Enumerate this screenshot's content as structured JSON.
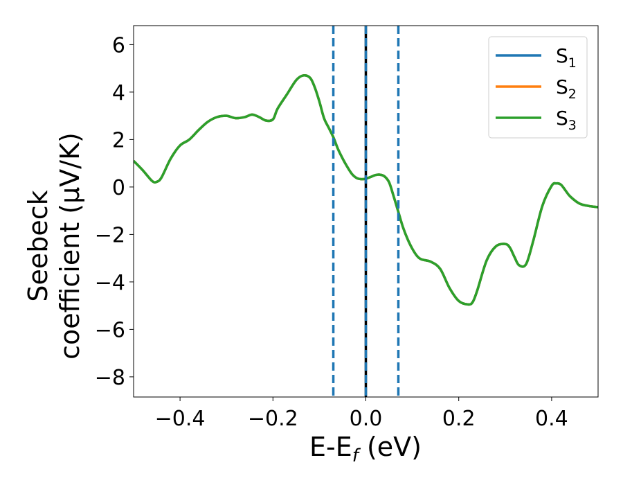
{
  "chart_data": {
    "type": "line",
    "xlabel": "E-E",
    "xlabel_sub": "f",
    "xlabel_unit": " (eV)",
    "ylabel_line1": "Seebeck",
    "ylabel_line2": "coefficient  (μV/K)",
    "xlim": [
      -0.5,
      0.5
    ],
    "ylim": [
      -8.85,
      6.8
    ],
    "xticks": [
      -0.4,
      -0.2,
      0.0,
      0.2,
      0.4
    ],
    "xtick_labels": [
      "−0.4",
      "−0.2",
      "0.0",
      "0.2",
      "0.4"
    ],
    "yticks": [
      -8,
      -6,
      -4,
      -2,
      0,
      2,
      4,
      6
    ],
    "ytick_labels": [
      "−8",
      "−6",
      "−4",
      "−2",
      "0",
      "2",
      "4",
      "6"
    ],
    "grid": false,
    "legend_position": "top-right",
    "x": [
      -0.5,
      -0.48,
      -0.46,
      -0.45,
      -0.44,
      -0.42,
      -0.4,
      -0.38,
      -0.36,
      -0.34,
      -0.32,
      -0.3,
      -0.28,
      -0.26,
      -0.245,
      -0.23,
      -0.215,
      -0.2,
      -0.19,
      -0.17,
      -0.15,
      -0.135,
      -0.12,
      -0.11,
      -0.1,
      -0.09,
      -0.08,
      -0.07,
      -0.06,
      -0.05,
      -0.04,
      -0.03,
      -0.02,
      -0.01,
      0.0,
      0.01,
      0.02,
      0.03,
      0.04,
      0.05,
      0.06,
      0.07,
      0.08,
      0.09,
      0.1,
      0.11,
      0.12,
      0.14,
      0.16,
      0.18,
      0.2,
      0.22,
      0.23,
      0.24,
      0.26,
      0.28,
      0.3,
      0.31,
      0.32,
      0.33,
      0.345,
      0.36,
      0.38,
      0.4,
      0.41,
      0.42,
      0.43,
      0.44,
      0.46,
      0.48,
      0.5
    ],
    "series": [
      {
        "name": "S",
        "sub": "1",
        "color": "#1f77b4",
        "values": [
          1.1,
          0.7,
          0.25,
          0.22,
          0.4,
          1.2,
          1.75,
          2.0,
          2.4,
          2.75,
          2.95,
          3.0,
          2.9,
          2.95,
          3.05,
          2.95,
          2.8,
          2.85,
          3.3,
          3.9,
          4.5,
          4.7,
          4.6,
          4.2,
          3.6,
          2.9,
          2.5,
          2.1,
          1.6,
          1.2,
          0.85,
          0.55,
          0.38,
          0.33,
          0.35,
          0.42,
          0.5,
          0.52,
          0.45,
          0.2,
          -0.4,
          -1.05,
          -1.7,
          -2.2,
          -2.6,
          -2.9,
          -3.05,
          -3.15,
          -3.45,
          -4.25,
          -4.8,
          -4.95,
          -4.85,
          -4.35,
          -3.1,
          -2.5,
          -2.4,
          -2.55,
          -2.95,
          -3.3,
          -3.25,
          -2.3,
          -0.8,
          0.05,
          0.15,
          0.1,
          -0.15,
          -0.4,
          -0.7,
          -0.8,
          -0.85
        ]
      },
      {
        "name": "S",
        "sub": "2",
        "color": "#ff7f0e",
        "values": [
          1.1,
          0.7,
          0.25,
          0.22,
          0.4,
          1.2,
          1.75,
          2.0,
          2.4,
          2.75,
          2.95,
          3.0,
          2.9,
          2.95,
          3.05,
          2.95,
          2.8,
          2.85,
          3.3,
          3.9,
          4.5,
          4.7,
          4.6,
          4.2,
          3.6,
          2.9,
          2.5,
          2.1,
          1.6,
          1.2,
          0.85,
          0.55,
          0.38,
          0.33,
          0.35,
          0.42,
          0.5,
          0.52,
          0.45,
          0.2,
          -0.4,
          -1.05,
          -1.7,
          -2.2,
          -2.6,
          -2.9,
          -3.05,
          -3.15,
          -3.45,
          -4.25,
          -4.8,
          -4.95,
          -4.85,
          -4.35,
          -3.1,
          -2.5,
          -2.4,
          -2.55,
          -2.95,
          -3.3,
          -3.25,
          -2.3,
          -0.8,
          0.05,
          0.15,
          0.1,
          -0.15,
          -0.4,
          -0.7,
          -0.8,
          -0.85
        ]
      },
      {
        "name": "S",
        "sub": "3",
        "color": "#2ca02c",
        "values": [
          1.1,
          0.7,
          0.25,
          0.22,
          0.4,
          1.2,
          1.75,
          2.0,
          2.4,
          2.75,
          2.95,
          3.0,
          2.9,
          2.95,
          3.05,
          2.95,
          2.8,
          2.85,
          3.3,
          3.9,
          4.5,
          4.7,
          4.6,
          4.2,
          3.6,
          2.9,
          2.5,
          2.1,
          1.6,
          1.2,
          0.85,
          0.55,
          0.38,
          0.33,
          0.35,
          0.42,
          0.5,
          0.52,
          0.45,
          0.2,
          -0.4,
          -1.05,
          -1.7,
          -2.2,
          -2.6,
          -2.9,
          -3.05,
          -3.15,
          -3.45,
          -4.25,
          -4.8,
          -4.95,
          -4.85,
          -4.35,
          -3.1,
          -2.5,
          -2.4,
          -2.55,
          -2.95,
          -3.3,
          -3.25,
          -2.3,
          -0.8,
          0.05,
          0.15,
          0.1,
          -0.15,
          -0.4,
          -0.7,
          -0.8,
          -0.85
        ]
      }
    ],
    "vertical_lines": [
      {
        "x": -0.07,
        "style": "dashed",
        "color": "#1f77b4"
      },
      {
        "x": 0.07,
        "style": "dashed",
        "color": "#1f77b4"
      },
      {
        "x": 0.0,
        "style": "solid",
        "color": "#000000"
      },
      {
        "x": 0.0,
        "style": "dashed",
        "color": "#1f77b4"
      }
    ]
  }
}
